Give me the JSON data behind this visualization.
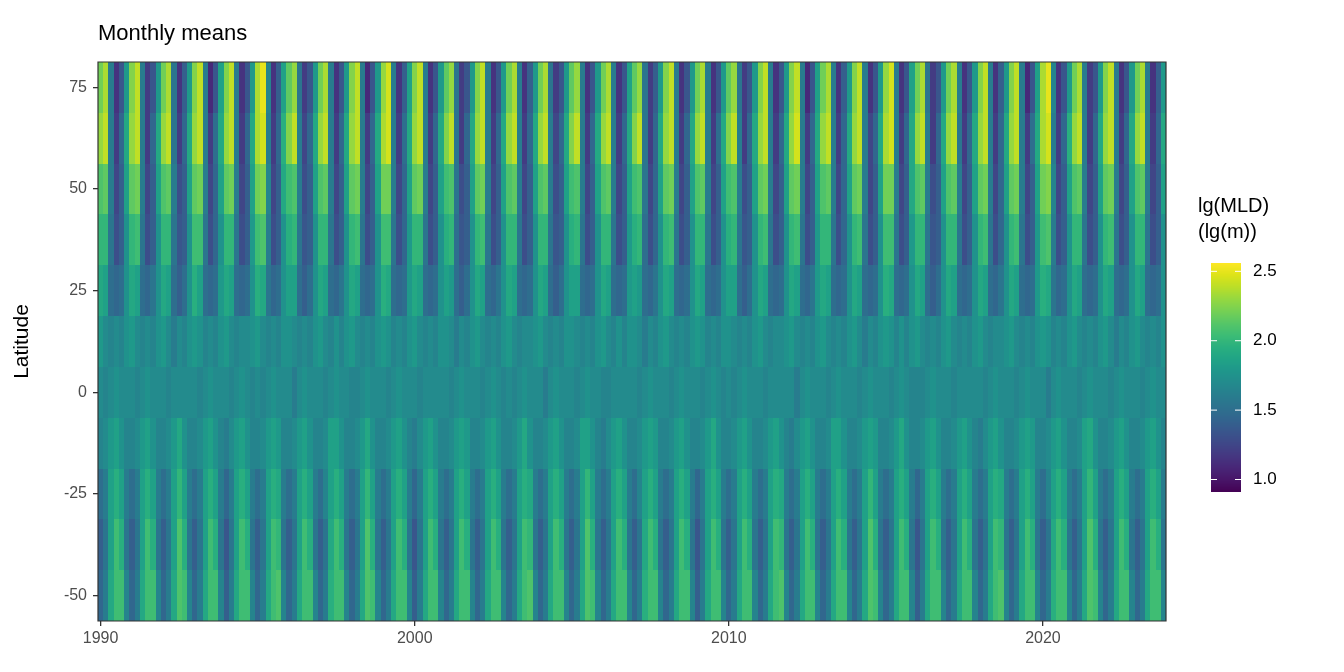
{
  "chart_data": {
    "type": "heatmap",
    "title": "Monthly means",
    "ylabel": "Latitude",
    "clabel": "lg(MLD)\n(lg(m))",
    "categories": [
      "1990",
      null,
      null,
      null,
      null,
      null,
      null,
      null,
      null,
      null,
      null,
      null,
      null,
      null,
      null,
      null,
      null,
      null,
      null,
      null,
      null,
      null,
      null,
      null,
      null,
      null,
      null,
      null,
      null,
      null,
      null,
      null,
      null,
      null,
      null,
      null,
      null,
      null,
      null,
      null,
      null,
      null,
      null,
      null,
      null,
      null,
      null,
      null,
      null,
      null,
      null,
      null,
      null,
      null,
      null,
      null,
      null,
      null,
      null,
      null,
      "2000",
      null,
      null,
      null,
      null,
      null,
      null,
      null,
      null,
      null,
      null,
      null,
      null,
      null,
      null,
      null,
      null,
      null,
      null,
      null,
      null,
      null,
      null,
      null,
      null,
      null,
      null,
      null,
      null,
      null,
      null,
      null,
      null,
      null,
      null,
      null,
      null,
      null,
      null,
      null,
      null,
      null,
      null,
      null,
      null,
      null,
      null,
      null,
      null,
      null,
      null,
      null,
      null,
      null,
      null,
      null,
      null,
      null,
      null,
      null,
      "2010",
      null,
      null,
      null,
      null,
      null,
      null,
      null,
      null,
      null,
      null,
      null,
      null,
      null,
      null,
      null,
      null,
      null,
      null,
      null,
      null,
      null,
      null,
      null,
      null,
      null,
      null,
      null,
      null,
      null,
      null,
      null,
      null,
      null,
      null,
      null,
      null,
      null,
      null,
      null,
      null,
      null,
      null,
      null,
      null,
      null,
      null,
      null,
      null,
      null,
      null,
      null,
      null,
      null,
      null,
      null,
      null,
      null,
      null,
      null,
      "2020",
      null,
      null,
      null,
      null,
      null,
      null,
      null,
      null,
      null,
      null,
      null,
      null,
      null,
      null,
      null,
      null,
      null,
      null,
      null,
      null,
      null,
      null,
      null
    ],
    "y_categories": [
      "75",
      null,
      "50",
      null,
      "25",
      null,
      "0",
      null,
      "-25",
      null,
      "-50"
    ],
    "cells": [
      [
        2.2,
        2.35,
        1.6,
        1.15,
        1.35,
        1.8,
        2.25,
        2.4,
        1.6,
        1.2,
        1.35,
        1.8,
        2.2,
        2.35,
        1.55,
        1.15,
        1.4,
        1.8,
        2.25,
        2.4,
        1.6,
        1.1,
        1.35,
        1.85,
        2.25,
        2.4,
        1.6,
        1.15,
        1.35,
        1.8,
        2.35,
        2.5,
        1.65,
        1.15,
        1.4,
        1.85,
        2.15,
        2.3,
        1.55,
        1.2,
        1.35,
        1.8,
        2.2,
        2.35,
        1.6,
        1.15,
        1.35,
        1.8,
        2.25,
        2.4,
        1.6,
        1.1,
        1.35,
        1.8,
        2.3,
        2.45,
        1.6,
        1.15,
        1.4,
        1.85,
        2.25,
        2.4,
        1.6,
        1.15,
        1.35,
        1.8,
        2.15,
        2.3,
        1.55,
        1.2,
        1.35,
        1.8,
        2.25,
        2.4,
        1.6,
        1.15,
        1.35,
        1.8,
        2.2,
        2.35,
        1.6,
        1.15,
        1.4,
        1.8,
        2.2,
        2.35,
        1.55,
        1.2,
        1.35,
        1.8,
        2.15,
        2.3,
        1.6,
        1.15,
        1.35,
        1.8,
        2.2,
        2.35,
        1.6,
        1.15,
        1.35,
        1.85,
        2.15,
        2.3,
        1.55,
        1.2,
        1.4,
        1.8,
        2.25,
        2.4,
        1.6,
        1.15,
        1.35,
        1.8,
        2.2,
        2.35,
        1.6,
        1.15,
        1.35,
        1.8,
        2.15,
        2.3,
        1.55,
        1.2,
        1.35,
        1.8,
        2.25,
        2.4,
        1.6,
        1.15,
        1.35,
        1.8,
        2.25,
        2.4,
        1.6,
        1.1,
        1.35,
        1.85,
        2.2,
        2.35,
        1.6,
        1.15,
        1.4,
        1.8,
        2.25,
        2.4,
        1.6,
        1.15,
        1.35,
        1.8,
        2.3,
        2.45,
        1.6,
        1.15,
        1.35,
        1.85,
        2.2,
        2.35,
        1.55,
        1.2,
        1.35,
        1.8,
        2.2,
        2.35,
        1.6,
        1.15,
        1.35,
        1.8,
        2.25,
        2.4,
        1.6,
        1.15,
        1.4,
        1.8,
        2.25,
        2.4,
        1.6,
        1.1,
        1.35,
        1.85,
        2.35,
        2.5,
        1.65,
        1.15,
        1.35,
        1.8,
        2.2,
        2.35,
        1.6,
        1.2,
        1.35,
        1.8,
        2.25,
        2.4,
        1.6,
        1.15,
        1.35,
        1.8,
        2.2,
        2.35,
        1.6,
        1.15,
        1.4,
        1.8
      ],
      [
        2.3,
        2.4,
        1.6,
        1.2,
        1.45,
        1.9,
        2.3,
        2.4,
        1.6,
        1.2,
        1.45,
        1.9,
        2.3,
        2.4,
        1.55,
        1.2,
        1.45,
        1.9,
        2.3,
        2.4,
        1.6,
        1.2,
        1.5,
        1.9,
        2.3,
        2.4,
        1.6,
        1.2,
        1.45,
        1.9,
        2.35,
        2.45,
        1.6,
        1.2,
        1.45,
        1.95,
        2.25,
        2.4,
        1.6,
        1.25,
        1.45,
        1.9,
        2.3,
        2.4,
        1.6,
        1.2,
        1.45,
        1.9,
        2.3,
        2.4,
        1.6,
        1.2,
        1.45,
        1.9,
        2.35,
        2.45,
        1.6,
        1.2,
        1.5,
        1.9,
        2.3,
        2.4,
        1.6,
        1.2,
        1.45,
        1.9,
        2.25,
        2.4,
        1.55,
        1.2,
        1.45,
        1.9,
        2.3,
        2.4,
        1.6,
        1.2,
        1.45,
        1.9,
        2.3,
        2.4,
        1.6,
        1.2,
        1.45,
        1.9,
        2.3,
        2.4,
        1.6,
        1.25,
        1.45,
        1.9,
        2.25,
        2.4,
        1.6,
        1.2,
        1.45,
        1.9,
        2.3,
        2.4,
        1.6,
        1.2,
        1.45,
        1.9,
        2.25,
        2.4,
        1.55,
        1.2,
        1.45,
        1.9,
        2.3,
        2.4,
        1.6,
        1.2,
        1.45,
        1.9,
        2.3,
        2.4,
        1.6,
        1.2,
        1.5,
        1.9,
        2.25,
        2.4,
        1.6,
        1.2,
        1.45,
        1.9,
        2.3,
        2.4,
        1.6,
        1.2,
        1.45,
        1.9,
        2.3,
        2.45,
        1.6,
        1.2,
        1.45,
        1.9,
        2.3,
        2.4,
        1.6,
        1.2,
        1.45,
        1.9,
        2.3,
        2.4,
        1.6,
        1.25,
        1.45,
        1.9,
        2.35,
        2.45,
        1.6,
        1.2,
        1.45,
        1.9,
        2.3,
        2.4,
        1.6,
        1.2,
        1.45,
        1.9,
        2.3,
        2.4,
        1.55,
        1.2,
        1.45,
        1.9,
        2.3,
        2.4,
        1.6,
        1.2,
        1.45,
        1.9,
        2.3,
        2.4,
        1.6,
        1.2,
        1.5,
        1.9,
        2.35,
        2.45,
        1.6,
        1.2,
        1.45,
        1.95,
        2.3,
        2.4,
        1.6,
        1.2,
        1.45,
        1.9,
        2.3,
        2.4,
        1.6,
        1.2,
        1.45,
        1.9,
        2.3,
        2.4,
        1.6,
        1.2,
        1.45,
        1.9
      ],
      [
        2.1,
        2.15,
        1.6,
        1.25,
        1.4,
        1.85,
        2.15,
        2.2,
        1.6,
        1.25,
        1.4,
        1.85,
        2.1,
        2.15,
        1.6,
        1.3,
        1.4,
        1.85,
        2.15,
        2.2,
        1.6,
        1.25,
        1.45,
        1.85,
        2.15,
        2.2,
        1.6,
        1.25,
        1.4,
        1.85,
        2.2,
        2.25,
        1.65,
        1.25,
        1.4,
        1.9,
        2.05,
        2.1,
        1.6,
        1.3,
        1.4,
        1.85,
        2.1,
        2.15,
        1.6,
        1.25,
        1.4,
        1.85,
        2.15,
        2.2,
        1.6,
        1.25,
        1.4,
        1.85,
        2.2,
        2.2,
        1.6,
        1.25,
        1.45,
        1.85,
        2.15,
        2.2,
        1.6,
        1.25,
        1.4,
        1.85,
        2.05,
        2.1,
        1.55,
        1.3,
        1.4,
        1.85,
        2.15,
        2.2,
        1.6,
        1.25,
        1.4,
        1.85,
        2.1,
        2.15,
        1.6,
        1.25,
        1.4,
        1.85,
        2.1,
        2.15,
        1.6,
        1.3,
        1.4,
        1.85,
        2.05,
        2.1,
        1.6,
        1.25,
        1.4,
        1.85,
        2.1,
        2.15,
        1.6,
        1.25,
        1.4,
        1.85,
        2.05,
        2.1,
        1.55,
        1.25,
        1.45,
        1.85,
        2.15,
        2.2,
        1.6,
        1.25,
        1.4,
        1.85,
        2.1,
        2.15,
        1.6,
        1.25,
        1.4,
        1.85,
        2.05,
        2.1,
        1.6,
        1.3,
        1.4,
        1.85,
        2.15,
        2.2,
        1.6,
        1.25,
        1.4,
        1.85,
        2.15,
        2.2,
        1.6,
        1.25,
        1.4,
        1.85,
        2.1,
        2.15,
        1.6,
        1.25,
        1.45,
        1.85,
        2.15,
        2.2,
        1.6,
        1.25,
        1.4,
        1.85,
        2.2,
        2.2,
        1.6,
        1.25,
        1.4,
        1.9,
        2.1,
        2.15,
        1.6,
        1.3,
        1.4,
        1.85,
        2.1,
        2.15,
        1.6,
        1.25,
        1.4,
        1.85,
        2.15,
        2.2,
        1.6,
        1.25,
        1.45,
        1.85,
        2.15,
        2.2,
        1.6,
        1.25,
        1.4,
        1.85,
        2.2,
        2.25,
        1.65,
        1.25,
        1.4,
        1.85,
        2.1,
        2.15,
        1.6,
        1.25,
        1.4,
        1.85,
        2.15,
        2.2,
        1.6,
        1.25,
        1.4,
        1.85,
        2.1,
        2.15,
        1.6,
        1.25,
        1.4,
        1.85
      ],
      [
        2.0,
        2.0,
        1.55,
        1.3,
        1.4,
        1.75,
        2.0,
        2.05,
        1.55,
        1.3,
        1.4,
        1.75,
        2.0,
        2.0,
        1.55,
        1.35,
        1.4,
        1.75,
        2.05,
        2.05,
        1.55,
        1.3,
        1.45,
        1.75,
        2.0,
        2.0,
        1.55,
        1.3,
        1.4,
        1.8,
        2.05,
        2.1,
        1.6,
        1.3,
        1.4,
        1.75,
        1.95,
        2.0,
        1.55,
        1.35,
        1.4,
        1.75,
        2.0,
        2.0,
        1.55,
        1.3,
        1.4,
        1.75,
        2.0,
        2.05,
        1.55,
        1.3,
        1.4,
        1.75,
        2.05,
        2.05,
        1.55,
        1.3,
        1.45,
        1.8,
        2.0,
        2.0,
        1.55,
        1.3,
        1.4,
        1.75,
        1.95,
        2.0,
        1.5,
        1.35,
        1.4,
        1.75,
        2.0,
        2.05,
        1.55,
        1.3,
        1.4,
        1.75,
        2.0,
        2.0,
        1.55,
        1.3,
        1.4,
        1.75,
        2.0,
        2.0,
        1.55,
        1.35,
        1.4,
        1.75,
        1.95,
        2.0,
        1.55,
        1.3,
        1.4,
        1.75,
        2.0,
        2.0,
        1.55,
        1.3,
        1.4,
        1.8,
        1.95,
        2.0,
        1.5,
        1.3,
        1.45,
        1.75,
        2.0,
        2.05,
        1.55,
        1.3,
        1.4,
        1.75,
        2.0,
        2.0,
        1.55,
        1.3,
        1.4,
        1.75,
        1.95,
        2.0,
        1.55,
        1.35,
        1.4,
        1.75,
        2.0,
        2.05,
        1.55,
        1.3,
        1.4,
        1.75,
        2.0,
        2.05,
        1.55,
        1.3,
        1.4,
        1.8,
        2.0,
        2.0,
        1.55,
        1.3,
        1.45,
        1.75,
        2.0,
        2.05,
        1.55,
        1.3,
        1.4,
        1.75,
        2.05,
        2.05,
        1.55,
        1.3,
        1.4,
        1.8,
        2.0,
        2.0,
        1.55,
        1.35,
        1.4,
        1.75,
        2.0,
        2.0,
        1.55,
        1.3,
        1.4,
        1.75,
        2.0,
        2.05,
        1.55,
        1.3,
        1.45,
        1.75,
        2.0,
        2.05,
        1.55,
        1.3,
        1.4,
        1.8,
        2.05,
        2.1,
        1.6,
        1.3,
        1.4,
        1.75,
        2.0,
        2.0,
        1.55,
        1.3,
        1.4,
        1.75,
        2.0,
        2.05,
        1.55,
        1.3,
        1.4,
        1.75,
        2.0,
        2.0,
        1.55,
        1.3,
        1.4,
        1.75
      ],
      [
        1.9,
        1.85,
        1.5,
        1.45,
        1.5,
        1.75,
        1.9,
        1.85,
        1.5,
        1.45,
        1.55,
        1.75,
        1.9,
        1.85,
        1.5,
        1.4,
        1.5,
        1.75,
        1.95,
        1.85,
        1.5,
        1.45,
        1.5,
        1.8,
        1.9,
        1.85,
        1.5,
        1.45,
        1.5,
        1.75,
        1.95,
        1.9,
        1.55,
        1.45,
        1.5,
        1.75,
        1.85,
        1.85,
        1.5,
        1.4,
        1.5,
        1.75,
        1.9,
        1.85,
        1.5,
        1.45,
        1.55,
        1.75,
        1.9,
        1.85,
        1.5,
        1.45,
        1.5,
        1.75,
        1.95,
        1.9,
        1.5,
        1.45,
        1.5,
        1.8,
        1.9,
        1.85,
        1.5,
        1.45,
        1.5,
        1.75,
        1.85,
        1.8,
        1.5,
        1.4,
        1.5,
        1.75,
        1.9,
        1.85,
        1.5,
        1.45,
        1.55,
        1.75,
        1.9,
        1.85,
        1.5,
        1.45,
        1.5,
        1.75,
        1.9,
        1.85,
        1.5,
        1.4,
        1.5,
        1.75,
        1.85,
        1.85,
        1.5,
        1.45,
        1.5,
        1.75,
        1.9,
        1.85,
        1.5,
        1.45,
        1.5,
        1.8,
        1.85,
        1.8,
        1.5,
        1.45,
        1.55,
        1.75,
        1.9,
        1.85,
        1.5,
        1.45,
        1.5,
        1.75,
        1.9,
        1.85,
        1.5,
        1.45,
        1.5,
        1.75,
        1.85,
        1.85,
        1.5,
        1.4,
        1.5,
        1.75,
        1.9,
        1.85,
        1.5,
        1.45,
        1.5,
        1.75,
        1.9,
        1.85,
        1.5,
        1.45,
        1.55,
        1.8,
        1.9,
        1.85,
        1.5,
        1.45,
        1.5,
        1.75,
        1.9,
        1.85,
        1.5,
        1.45,
        1.5,
        1.75,
        1.95,
        1.9,
        1.5,
        1.45,
        1.5,
        1.75,
        1.9,
        1.85,
        1.5,
        1.4,
        1.5,
        1.75,
        1.9,
        1.85,
        1.5,
        1.45,
        1.5,
        1.75,
        1.9,
        1.85,
        1.5,
        1.45,
        1.55,
        1.75,
        1.9,
        1.85,
        1.5,
        1.45,
        1.5,
        1.8,
        1.95,
        1.9,
        1.55,
        1.45,
        1.5,
        1.75,
        1.9,
        1.85,
        1.5,
        1.45,
        1.5,
        1.75,
        1.9,
        1.85,
        1.5,
        1.45,
        1.5,
        1.75,
        1.9,
        1.85,
        1.5,
        1.45,
        1.5,
        1.75
      ],
      [
        1.8,
        1.7,
        1.65,
        1.7,
        1.65,
        1.75,
        1.8,
        1.7,
        1.65,
        1.7,
        1.65,
        1.75,
        1.8,
        1.7,
        1.6,
        1.7,
        1.65,
        1.75,
        1.8,
        1.75,
        1.65,
        1.7,
        1.65,
        1.75,
        1.8,
        1.7,
        1.65,
        1.7,
        1.7,
        1.75,
        1.8,
        1.7,
        1.65,
        1.7,
        1.65,
        1.75,
        1.75,
        1.7,
        1.65,
        1.7,
        1.65,
        1.75,
        1.8,
        1.7,
        1.65,
        1.75,
        1.65,
        1.75,
        1.8,
        1.7,
        1.65,
        1.7,
        1.65,
        1.75,
        1.8,
        1.75,
        1.65,
        1.7,
        1.65,
        1.75,
        1.8,
        1.7,
        1.65,
        1.7,
        1.65,
        1.75,
        1.75,
        1.7,
        1.6,
        1.7,
        1.65,
        1.75,
        1.8,
        1.7,
        1.65,
        1.7,
        1.65,
        1.75,
        1.8,
        1.7,
        1.65,
        1.7,
        1.7,
        1.75,
        1.8,
        1.7,
        1.65,
        1.7,
        1.65,
        1.75,
        1.75,
        1.7,
        1.65,
        1.7,
        1.65,
        1.75,
        1.8,
        1.7,
        1.65,
        1.75,
        1.65,
        1.75,
        1.75,
        1.7,
        1.6,
        1.7,
        1.65,
        1.75,
        1.8,
        1.7,
        1.65,
        1.7,
        1.65,
        1.75,
        1.8,
        1.75,
        1.65,
        1.7,
        1.65,
        1.75,
        1.75,
        1.7,
        1.65,
        1.7,
        1.65,
        1.75,
        1.8,
        1.7,
        1.65,
        1.7,
        1.7,
        1.75,
        1.8,
        1.7,
        1.65,
        1.7,
        1.65,
        1.75,
        1.8,
        1.7,
        1.65,
        1.7,
        1.65,
        1.75,
        1.8,
        1.7,
        1.6,
        1.7,
        1.65,
        1.75,
        1.8,
        1.75,
        1.65,
        1.75,
        1.65,
        1.75,
        1.8,
        1.7,
        1.65,
        1.7,
        1.65,
        1.75,
        1.8,
        1.7,
        1.65,
        1.7,
        1.65,
        1.75,
        1.8,
        1.7,
        1.65,
        1.7,
        1.7,
        1.75,
        1.8,
        1.7,
        1.65,
        1.7,
        1.65,
        1.75,
        1.8,
        1.75,
        1.65,
        1.7,
        1.65,
        1.75,
        1.8,
        1.7,
        1.65,
        1.7,
        1.65,
        1.75,
        1.8,
        1.7,
        1.6,
        1.7,
        1.65,
        1.75,
        1.8,
        1.7,
        1.65,
        1.7,
        1.65,
        1.75
      ],
      [
        1.7,
        1.65,
        1.7,
        1.75,
        1.7,
        1.7,
        1.7,
        1.65,
        1.7,
        1.75,
        1.7,
        1.7,
        1.7,
        1.65,
        1.7,
        1.7,
        1.7,
        1.7,
        1.7,
        1.65,
        1.7,
        1.75,
        1.7,
        1.7,
        1.7,
        1.65,
        1.7,
        1.75,
        1.7,
        1.65,
        1.7,
        1.65,
        1.7,
        1.75,
        1.7,
        1.7,
        1.7,
        1.6,
        1.7,
        1.75,
        1.7,
        1.7,
        1.7,
        1.65,
        1.7,
        1.75,
        1.7,
        1.7,
        1.65,
        1.65,
        1.7,
        1.75,
        1.7,
        1.7,
        1.7,
        1.65,
        1.7,
        1.75,
        1.7,
        1.7,
        1.7,
        1.65,
        1.7,
        1.7,
        1.7,
        1.7,
        1.7,
        1.65,
        1.7,
        1.75,
        1.7,
        1.7,
        1.7,
        1.65,
        1.7,
        1.75,
        1.7,
        1.65,
        1.7,
        1.65,
        1.7,
        1.75,
        1.7,
        1.7,
        1.7,
        1.6,
        1.7,
        1.75,
        1.7,
        1.7,
        1.7,
        1.65,
        1.7,
        1.75,
        1.7,
        1.7,
        1.65,
        1.65,
        1.7,
        1.7,
        1.7,
        1.7,
        1.7,
        1.65,
        1.7,
        1.75,
        1.7,
        1.7,
        1.7,
        1.65,
        1.7,
        1.75,
        1.7,
        1.7,
        1.7,
        1.65,
        1.7,
        1.75,
        1.7,
        1.65,
        1.7,
        1.65,
        1.7,
        1.75,
        1.7,
        1.7,
        1.7,
        1.65,
        1.7,
        1.7,
        1.7,
        1.7,
        1.7,
        1.6,
        1.7,
        1.75,
        1.7,
        1.7,
        1.7,
        1.65,
        1.7,
        1.75,
        1.7,
        1.7,
        1.7,
        1.65,
        1.7,
        1.75,
        1.7,
        1.7,
        1.7,
        1.65,
        1.7,
        1.75,
        1.7,
        1.65,
        1.65,
        1.65,
        1.7,
        1.75,
        1.7,
        1.7,
        1.7,
        1.65,
        1.7,
        1.7,
        1.7,
        1.7,
        1.7,
        1.65,
        1.7,
        1.75,
        1.7,
        1.7,
        1.7,
        1.65,
        1.7,
        1.75,
        1.7,
        1.7,
        1.7,
        1.6,
        1.7,
        1.75,
        1.7,
        1.7,
        1.7,
        1.65,
        1.7,
        1.75,
        1.7,
        1.7,
        1.7,
        1.65,
        1.7,
        1.75,
        1.7,
        1.7,
        1.7,
        1.65,
        1.7,
        1.75,
        1.7,
        1.7
      ],
      [
        1.65,
        1.7,
        1.8,
        1.85,
        1.75,
        1.65,
        1.65,
        1.7,
        1.8,
        1.85,
        1.75,
        1.65,
        1.65,
        1.7,
        1.8,
        1.9,
        1.75,
        1.65,
        1.65,
        1.7,
        1.8,
        1.85,
        1.75,
        1.65,
        1.6,
        1.7,
        1.8,
        1.85,
        1.75,
        1.65,
        1.65,
        1.7,
        1.8,
        1.85,
        1.8,
        1.65,
        1.65,
        1.7,
        1.8,
        1.85,
        1.75,
        1.65,
        1.65,
        1.7,
        1.85,
        1.85,
        1.75,
        1.65,
        1.65,
        1.7,
        1.8,
        1.9,
        1.75,
        1.65,
        1.65,
        1.7,
        1.8,
        1.85,
        1.75,
        1.65,
        1.6,
        1.7,
        1.8,
        1.85,
        1.75,
        1.65,
        1.65,
        1.7,
        1.8,
        1.85,
        1.8,
        1.65,
        1.65,
        1.7,
        1.8,
        1.85,
        1.75,
        1.65,
        1.65,
        1.7,
        1.8,
        1.9,
        1.75,
        1.65,
        1.65,
        1.7,
        1.8,
        1.85,
        1.75,
        1.65,
        1.65,
        1.7,
        1.85,
        1.85,
        1.75,
        1.65,
        1.6,
        1.7,
        1.8,
        1.85,
        1.75,
        1.65,
        1.65,
        1.7,
        1.8,
        1.85,
        1.8,
        1.65,
        1.65,
        1.7,
        1.8,
        1.85,
        1.75,
        1.65,
        1.65,
        1.7,
        1.8,
        1.9,
        1.75,
        1.65,
        1.65,
        1.7,
        1.8,
        1.85,
        1.75,
        1.65,
        1.65,
        1.7,
        1.8,
        1.85,
        1.75,
        1.65,
        1.6,
        1.7,
        1.8,
        1.85,
        1.75,
        1.65,
        1.65,
        1.7,
        1.85,
        1.85,
        1.75,
        1.65,
        1.65,
        1.7,
        1.8,
        1.85,
        1.8,
        1.65,
        1.65,
        1.7,
        1.8,
        1.9,
        1.75,
        1.65,
        1.65,
        1.7,
        1.8,
        1.85,
        1.75,
        1.65,
        1.65,
        1.7,
        1.8,
        1.85,
        1.75,
        1.65,
        1.6,
        1.7,
        1.8,
        1.85,
        1.75,
        1.65,
        1.65,
        1.7,
        1.8,
        1.85,
        1.8,
        1.65,
        1.65,
        1.7,
        1.8,
        1.85,
        1.75,
        1.65,
        1.65,
        1.7,
        1.85,
        1.9,
        1.75,
        1.65,
        1.65,
        1.7,
        1.8,
        1.85,
        1.75,
        1.65,
        1.65,
        1.7,
        1.8,
        1.85,
        1.75,
        1.65
      ],
      [
        1.5,
        1.6,
        1.85,
        1.95,
        1.85,
        1.6,
        1.5,
        1.6,
        1.85,
        1.95,
        1.85,
        1.6,
        1.5,
        1.6,
        1.85,
        2.0,
        1.85,
        1.6,
        1.5,
        1.6,
        1.85,
        1.95,
        1.85,
        1.6,
        1.45,
        1.6,
        1.85,
        1.95,
        1.85,
        1.6,
        1.5,
        1.6,
        1.85,
        1.95,
        1.9,
        1.6,
        1.5,
        1.6,
        1.85,
        1.95,
        1.85,
        1.6,
        1.5,
        1.65,
        1.85,
        1.95,
        1.85,
        1.6,
        1.5,
        1.6,
        1.85,
        2.0,
        1.85,
        1.6,
        1.5,
        1.6,
        1.85,
        1.95,
        1.85,
        1.6,
        1.45,
        1.6,
        1.85,
        1.95,
        1.85,
        1.6,
        1.5,
        1.6,
        1.85,
        1.95,
        1.85,
        1.6,
        1.5,
        1.6,
        1.85,
        1.95,
        1.85,
        1.6,
        1.5,
        1.6,
        1.85,
        1.95,
        1.9,
        1.6,
        1.5,
        1.6,
        1.85,
        1.95,
        1.85,
        1.6,
        1.5,
        1.6,
        1.85,
        2.0,
        1.85,
        1.6,
        1.5,
        1.6,
        1.85,
        1.95,
        1.85,
        1.6,
        1.5,
        1.65,
        1.85,
        1.95,
        1.85,
        1.6,
        1.5,
        1.6,
        1.85,
        1.95,
        1.85,
        1.6,
        1.45,
        1.6,
        1.85,
        1.95,
        1.85,
        1.6,
        1.5,
        1.6,
        1.85,
        1.95,
        1.85,
        1.6,
        1.5,
        1.6,
        1.85,
        1.95,
        1.9,
        1.6,
        1.5,
        1.6,
        1.85,
        1.95,
        1.85,
        1.6,
        1.5,
        1.6,
        1.85,
        1.95,
        1.85,
        1.6,
        1.5,
        1.6,
        1.85,
        2.0,
        1.85,
        1.6,
        1.5,
        1.6,
        1.85,
        1.95,
        1.85,
        1.6,
        1.45,
        1.6,
        1.85,
        1.95,
        1.85,
        1.6,
        1.5,
        1.6,
        1.85,
        1.95,
        1.85,
        1.6,
        1.5,
        1.6,
        1.85,
        1.95,
        1.9,
        1.6,
        1.5,
        1.6,
        1.85,
        1.95,
        1.85,
        1.6,
        1.5,
        1.65,
        1.85,
        1.95,
        1.85,
        1.6,
        1.5,
        1.6,
        1.85,
        2.0,
        1.85,
        1.6,
        1.5,
        1.6,
        1.85,
        1.95,
        1.85,
        1.6,
        1.5,
        1.6,
        1.85,
        1.95,
        1.85,
        1.6
      ],
      [
        1.4,
        1.55,
        1.85,
        2.05,
        1.95,
        1.55,
        1.4,
        1.55,
        1.85,
        2.05,
        1.95,
        1.55,
        1.4,
        1.55,
        1.85,
        2.1,
        1.95,
        1.55,
        1.4,
        1.55,
        1.85,
        2.05,
        1.95,
        1.55,
        1.35,
        1.55,
        1.85,
        2.05,
        1.95,
        1.55,
        1.4,
        1.55,
        1.85,
        2.05,
        2.0,
        1.55,
        1.4,
        1.55,
        1.85,
        2.05,
        1.95,
        1.55,
        1.4,
        1.55,
        1.9,
        2.05,
        1.95,
        1.55,
        1.4,
        1.55,
        1.85,
        2.1,
        1.95,
        1.55,
        1.4,
        1.55,
        1.85,
        2.05,
        1.95,
        1.55,
        1.35,
        1.55,
        1.85,
        2.05,
        1.95,
        1.55,
        1.4,
        1.55,
        1.85,
        2.05,
        1.95,
        1.55,
        1.4,
        1.55,
        1.85,
        2.05,
        1.95,
        1.55,
        1.4,
        1.55,
        1.85,
        2.05,
        2.0,
        1.55,
        1.4,
        1.55,
        1.85,
        2.05,
        1.95,
        1.55,
        1.4,
        1.55,
        1.85,
        2.1,
        1.95,
        1.55,
        1.4,
        1.55,
        1.85,
        2.05,
        1.95,
        1.55,
        1.4,
        1.55,
        1.9,
        2.05,
        1.95,
        1.55,
        1.4,
        1.55,
        1.85,
        2.05,
        1.95,
        1.55,
        1.35,
        1.55,
        1.85,
        2.05,
        1.95,
        1.55,
        1.4,
        1.55,
        1.85,
        2.05,
        1.95,
        1.55,
        1.4,
        1.55,
        1.85,
        2.05,
        2.0,
        1.55,
        1.4,
        1.55,
        1.85,
        2.05,
        1.95,
        1.55,
        1.4,
        1.55,
        1.85,
        2.05,
        1.95,
        1.55,
        1.4,
        1.55,
        1.85,
        2.1,
        1.95,
        1.55,
        1.4,
        1.55,
        1.85,
        2.05,
        1.95,
        1.55,
        1.35,
        1.55,
        1.85,
        2.05,
        1.95,
        1.55,
        1.4,
        1.55,
        1.85,
        2.05,
        1.95,
        1.55,
        1.4,
        1.55,
        1.85,
        2.05,
        2.0,
        1.55,
        1.4,
        1.55,
        1.85,
        2.05,
        1.95,
        1.55,
        1.4,
        1.55,
        1.9,
        2.05,
        1.95,
        1.55,
        1.4,
        1.55,
        1.85,
        2.1,
        1.95,
        1.55,
        1.4,
        1.55,
        1.85,
        2.05,
        1.95,
        1.55,
        1.4,
        1.55,
        1.85,
        2.05,
        1.95,
        1.55
      ],
      [
        1.45,
        1.6,
        1.9,
        2.05,
        2.05,
        1.65,
        1.45,
        1.6,
        1.9,
        2.05,
        2.05,
        1.65,
        1.45,
        1.6,
        1.9,
        2.1,
        2.05,
        1.65,
        1.45,
        1.6,
        1.9,
        2.05,
        2.05,
        1.65,
        1.4,
        1.6,
        1.9,
        2.05,
        2.05,
        1.65,
        1.45,
        1.6,
        1.9,
        2.05,
        2.1,
        1.65,
        1.45,
        1.6,
        1.9,
        2.05,
        2.05,
        1.65,
        1.45,
        1.6,
        1.95,
        2.05,
        2.05,
        1.65,
        1.45,
        1.6,
        1.9,
        2.1,
        2.05,
        1.65,
        1.45,
        1.6,
        1.9,
        2.05,
        2.05,
        1.65,
        1.4,
        1.6,
        1.9,
        2.05,
        2.05,
        1.65,
        1.45,
        1.6,
        1.9,
        2.05,
        2.05,
        1.65,
        1.45,
        1.6,
        1.9,
        2.05,
        2.05,
        1.65,
        1.45,
        1.6,
        1.9,
        2.05,
        2.1,
        1.65,
        1.45,
        1.6,
        1.9,
        2.05,
        2.05,
        1.65,
        1.45,
        1.6,
        1.9,
        2.1,
        2.05,
        1.65,
        1.45,
        1.6,
        1.9,
        2.05,
        2.05,
        1.65,
        1.45,
        1.6,
        1.95,
        2.05,
        2.05,
        1.65,
        1.45,
        1.6,
        1.9,
        2.05,
        2.05,
        1.65,
        1.4,
        1.6,
        1.9,
        2.05,
        2.05,
        1.65,
        1.45,
        1.6,
        1.9,
        2.05,
        2.05,
        1.65,
        1.45,
        1.6,
        1.9,
        2.05,
        2.1,
        1.65,
        1.45,
        1.6,
        1.9,
        2.05,
        2.05,
        1.65,
        1.45,
        1.6,
        1.9,
        2.05,
        2.05,
        1.65,
        1.45,
        1.6,
        1.9,
        2.1,
        2.05,
        1.65,
        1.45,
        1.6,
        1.9,
        2.05,
        2.05,
        1.65,
        1.4,
        1.6,
        1.9,
        2.05,
        2.05,
        1.65,
        1.45,
        1.6,
        1.9,
        2.05,
        2.05,
        1.65,
        1.45,
        1.6,
        1.9,
        2.05,
        2.1,
        1.65,
        1.45,
        1.6,
        1.9,
        2.05,
        2.05,
        1.65,
        1.45,
        1.6,
        1.95,
        2.05,
        2.05,
        1.65,
        1.45,
        1.6,
        1.9,
        2.1,
        2.05,
        1.65,
        1.45,
        1.6,
        1.9,
        2.05,
        2.05,
        1.65,
        1.45,
        1.6,
        1.9,
        2.05,
        2.05,
        1.65
      ]
    ],
    "clim": [
      0.91,
      2.56
    ],
    "cticks": [
      {
        "value": 1,
        "label": "1.0"
      },
      1.5,
      {
        "value": 2,
        "label": "2.0"
      },
      2.5
    ]
  }
}
